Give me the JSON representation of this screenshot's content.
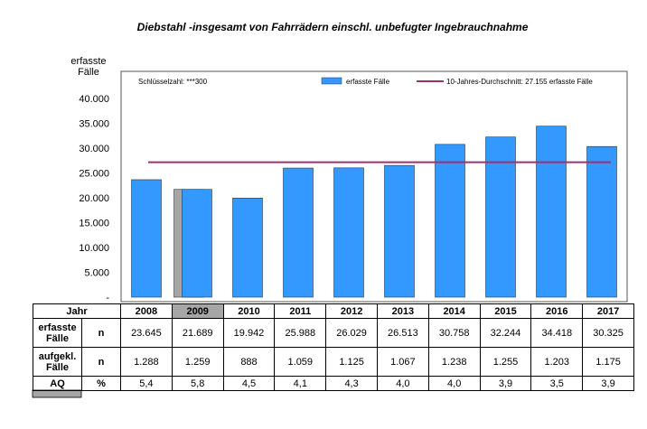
{
  "title": "Diebstahl -insgesamt von Fahrrädern einschl. unbefugter Ingebrauchnahme",
  "colors": {
    "bar": "#3399ff",
    "bar_highlight": "#a6a6a6",
    "avg_line": "#a0306a"
  },
  "chart_data": {
    "type": "bar",
    "categories": [
      "2008",
      "2009",
      "2010",
      "2011",
      "2012",
      "2013",
      "2014",
      "2015",
      "2016",
      "2017"
    ],
    "series": [
      {
        "name": "erfasste Fälle",
        "values": [
          23645,
          21689,
          19942,
          25988,
          26029,
          26513,
          30758,
          32244,
          34418,
          30325
        ]
      }
    ],
    "reference_line": {
      "label": "10-Jahres-Durchschnitt: 27.155 erfasste Fälle",
      "value": 27155
    },
    "ylabel": "erfasste Fälle",
    "ylabel_lines": [
      "erfasste",
      "Fälle"
    ],
    "ylim": [
      0,
      40000
    ],
    "yticks": [
      "-",
      "5.000",
      "10.000",
      "15.000",
      "20.000",
      "25.000",
      "30.000",
      "35.000",
      "40.000"
    ],
    "legend_position": "top-right",
    "key_note": "Schlüsselzahl: ***300"
  },
  "table": {
    "header_label": "Jahr",
    "rows": [
      {
        "label": "erfasste Fälle",
        "label_lines": [
          "erfasste",
          "Fälle"
        ],
        "unit": "n",
        "values": [
          "23.645",
          "21.689",
          "19.942",
          "25.988",
          "26.029",
          "26.513",
          "30.758",
          "32.244",
          "34.418",
          "30.325"
        ]
      },
      {
        "label": "aufgekl. Fälle",
        "label_lines": [
          "aufgekl.",
          "Fälle"
        ],
        "unit": "n",
        "values": [
          "1.288",
          "1.259",
          "888",
          "1.059",
          "1.125",
          "1.067",
          "1.238",
          "1.255",
          "1.203",
          "1.175"
        ]
      },
      {
        "label": "AQ",
        "label_lines": [
          "AQ"
        ],
        "unit": "%",
        "values": [
          "5,4",
          "5,8",
          "4,5",
          "4,1",
          "4,3",
          "4,0",
          "4,0",
          "3,9",
          "3,5",
          "3,9"
        ]
      }
    ]
  }
}
